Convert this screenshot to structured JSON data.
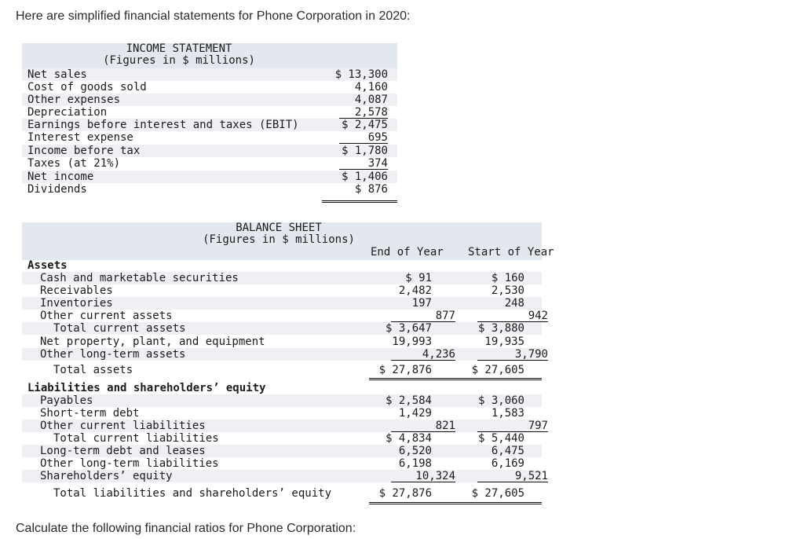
{
  "intro_text": "Here are simplified financial statements for Phone Corporation in 2020:",
  "income_statement": {
    "title_line1": "INCOME STATEMENT",
    "title_line2": "(Figures in $ millions)",
    "rows": [
      {
        "label": "Net sales",
        "value": "$ 13,300"
      },
      {
        "label": "Cost of goods sold",
        "value": "4,160"
      },
      {
        "label": "Other expenses",
        "value": "4,087"
      },
      {
        "label": "Depreciation",
        "value": "2,578"
      },
      {
        "label": "Earnings before interest and taxes (EBIT)",
        "value": "$ 2,475"
      },
      {
        "label": "Interest expense",
        "value": "695"
      },
      {
        "label": "Income before tax",
        "value": "$ 1,780"
      },
      {
        "label": "Taxes (at 21%)",
        "value": "374"
      },
      {
        "label": "Net income",
        "value": "$ 1,406"
      },
      {
        "label": "Dividends",
        "value": "$ 876"
      }
    ]
  },
  "balance_sheet": {
    "title_line1": "BALANCE SHEET",
    "title_line2": "(Figures in $ millions)",
    "col_end": "End of Year",
    "col_start": "Start of Year",
    "assets_heading": "Assets",
    "liabilities_heading": "Liabilities and shareholders’ equity",
    "rows": [
      {
        "label": "Cash and marketable securities",
        "end": "$ 91",
        "start": "$ 160"
      },
      {
        "label": "Receivables",
        "end": "2,482",
        "start": "2,530"
      },
      {
        "label": "Inventories",
        "end": "197",
        "start": "248"
      },
      {
        "label": "Other current assets",
        "end": "877",
        "start": "942"
      },
      {
        "label": "Total current assets",
        "end": "$ 3,647",
        "start": "$ 3,880"
      },
      {
        "label": "Net property, plant, and equipment",
        "end": "19,993",
        "start": "19,935"
      },
      {
        "label": "Other long-term assets",
        "end": "4,236",
        "start": "3,790"
      },
      {
        "label": "Total assets",
        "end": "$ 27,876",
        "start": "$ 27,605"
      },
      {
        "label": "Payables",
        "end": "$ 2,584",
        "start": "$ 3,060"
      },
      {
        "label": "Short-term debt",
        "end": "1,429",
        "start": "1,583"
      },
      {
        "label": "Other current liabilities",
        "end": "821",
        "start": "797"
      },
      {
        "label": "Total current liabilities",
        "end": "$ 4,834",
        "start": "$ 5,440"
      },
      {
        "label": "Long-term debt and leases",
        "end": "6,520",
        "start": "6,475"
      },
      {
        "label": "Other long-term liabilities",
        "end": "6,198",
        "start": "6,169"
      },
      {
        "label": "Shareholders’ equity",
        "end": "10,324",
        "start": "9,521"
      },
      {
        "label": "Total liabilities and shareholders’ equity",
        "end": "$ 27,876",
        "start": "$ 27,605"
      }
    ]
  },
  "outro_text": "Calculate the following financial ratios for Phone Corporation:"
}
